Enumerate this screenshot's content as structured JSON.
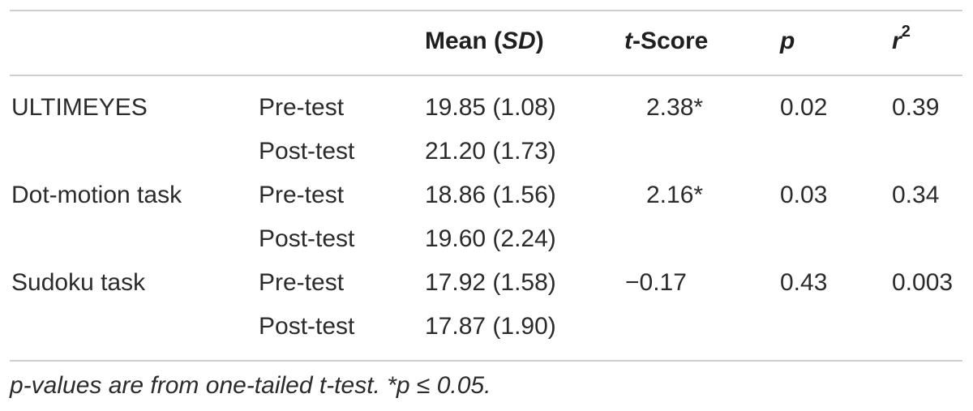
{
  "table": {
    "header": {
      "mean_label": "Mean (",
      "mean_sd": "SD",
      "mean_close": ")",
      "t_italic": "t",
      "t_rest": "-Score",
      "p": "p",
      "r": "r",
      "r_sup": "2"
    },
    "rows": [
      {
        "group": "ULTIMEYES",
        "phase": "Pre-test",
        "mean": "19.85 (1.08)",
        "t": "2.38*",
        "p": "0.02",
        "r2": "0.39"
      },
      {
        "group": "",
        "phase": "Post-test",
        "mean": "21.20 (1.73)",
        "t": "",
        "p": "",
        "r2": ""
      },
      {
        "group": "Dot-motion task",
        "phase": "Pre-test",
        "mean": "18.86 (1.56)",
        "t": "2.16*",
        "p": "0.03",
        "r2": "0.34"
      },
      {
        "group": "",
        "phase": "Post-test",
        "mean": "19.60 (2.24)",
        "t": "",
        "p": "",
        "r2": ""
      },
      {
        "group": "Sudoku task",
        "phase": "Pre-test",
        "mean": "17.92 (1.58)",
        "t": "−0.17",
        "p": "0.43",
        "r2": "0.003"
      },
      {
        "group": "",
        "phase": "Post-test",
        "mean": "17.87 (1.90)",
        "t": "",
        "p": "",
        "r2": ""
      }
    ],
    "footnote": "p-values are from one-tailed t-test. *p ≤ 0.05."
  }
}
